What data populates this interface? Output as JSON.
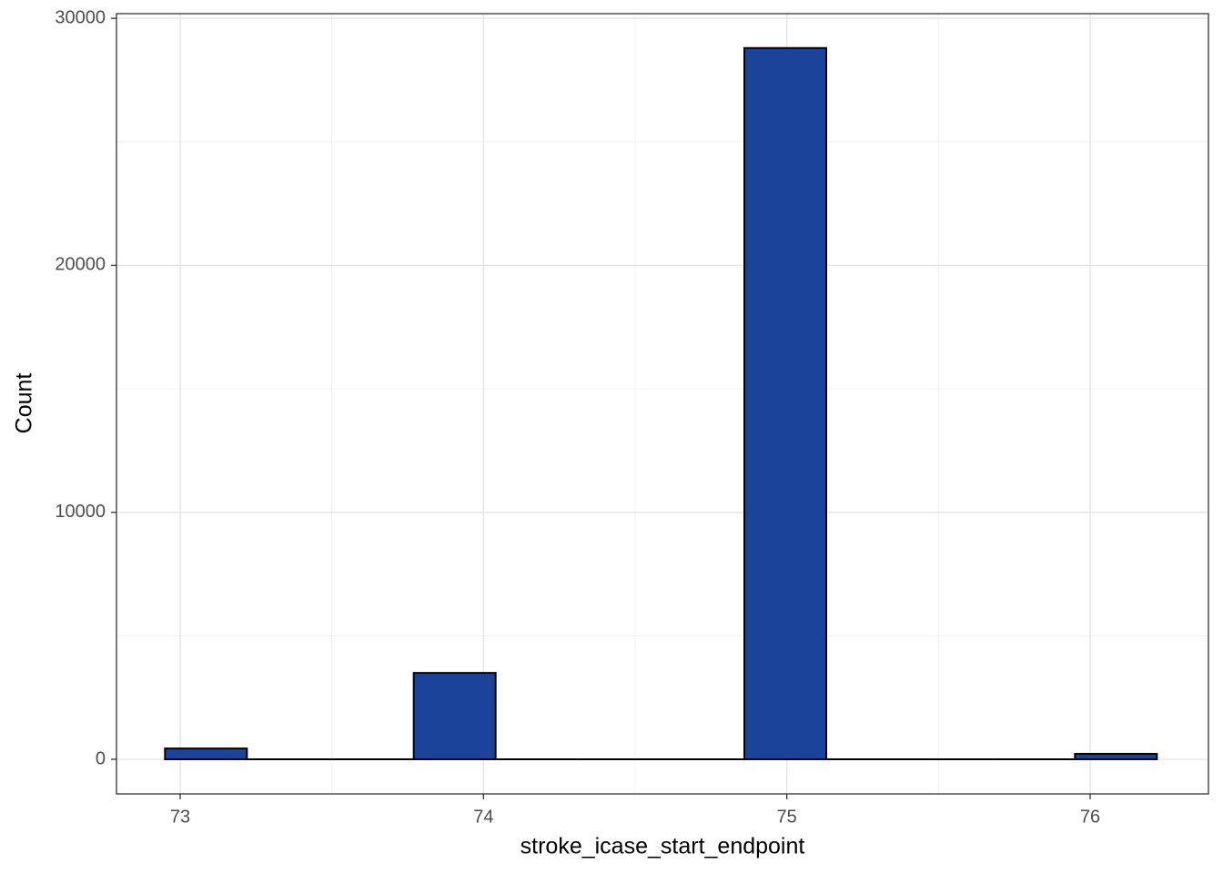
{
  "chart_data": {
    "type": "histogram",
    "x_label": "stroke_icase_start_endpoint",
    "y_label": "Count",
    "bins": [
      72.95,
      73.22,
      73.5,
      73.77,
      74.04,
      74.31,
      74.59,
      74.86,
      75.13,
      75.4,
      75.68,
      75.95,
      76.22
    ],
    "values": [
      440,
      0,
      0,
      3500,
      0,
      0,
      0,
      28800,
      0,
      0,
      0,
      220
    ],
    "color": "#1a4399",
    "edge_color": "#000000",
    "xlim": [
      72.79,
      76.39
    ],
    "xticks": [
      73,
      74,
      75,
      76
    ],
    "ylim": [
      -1400,
      30190
    ],
    "yticks": [
      0,
      10000,
      20000,
      30000
    ],
    "x_minor_grid": [
      73.5,
      74.5,
      75.5
    ],
    "y_minor_grid": [
      5000,
      15000,
      25000
    ],
    "grid": true
  }
}
